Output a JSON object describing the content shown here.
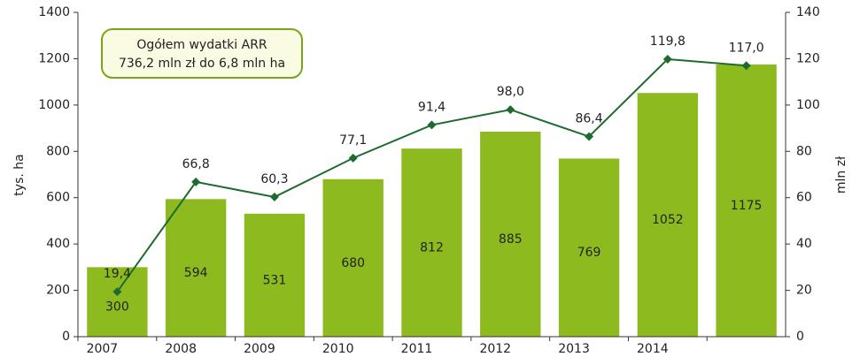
{
  "chart_data": {
    "type": "bar_line",
    "categories": [
      "2007",
      "2008",
      "2009",
      "2010",
      "2011",
      "2012",
      "2013",
      "2014",
      null
    ],
    "series": [
      {
        "type": "bar",
        "color": "#8dbb1f",
        "values": [
          300,
          594,
          531,
          680,
          812,
          885,
          769,
          1052,
          1175
        ]
      },
      {
        "type": "line",
        "axis": "y2",
        "color": "#1d6b2f",
        "values": [
          19.4,
          66.8,
          60.3,
          77.1,
          91.4,
          98.0,
          86.4,
          119.8,
          117.0
        ],
        "value_labels": [
          "19,4",
          "66,8",
          "60,3",
          "77,1",
          "91,4",
          "98,0",
          "86,4",
          "119,8",
          "117,0"
        ]
      }
    ],
    "ylabel": "tys. ha",
    "y2label": "mln zł",
    "ylim": [
      0,
      1400
    ],
    "yticks": [
      0,
      200,
      400,
      600,
      800,
      1000,
      1200,
      1400
    ],
    "y2lim": [
      0,
      140
    ],
    "y2ticks": [
      0,
      20,
      40,
      60,
      80,
      100,
      120,
      140
    ],
    "annotation": [
      "Ogółem wydatki ARR",
      "736,2 mln zł do 6,8 mln ha"
    ],
    "grid": false
  }
}
